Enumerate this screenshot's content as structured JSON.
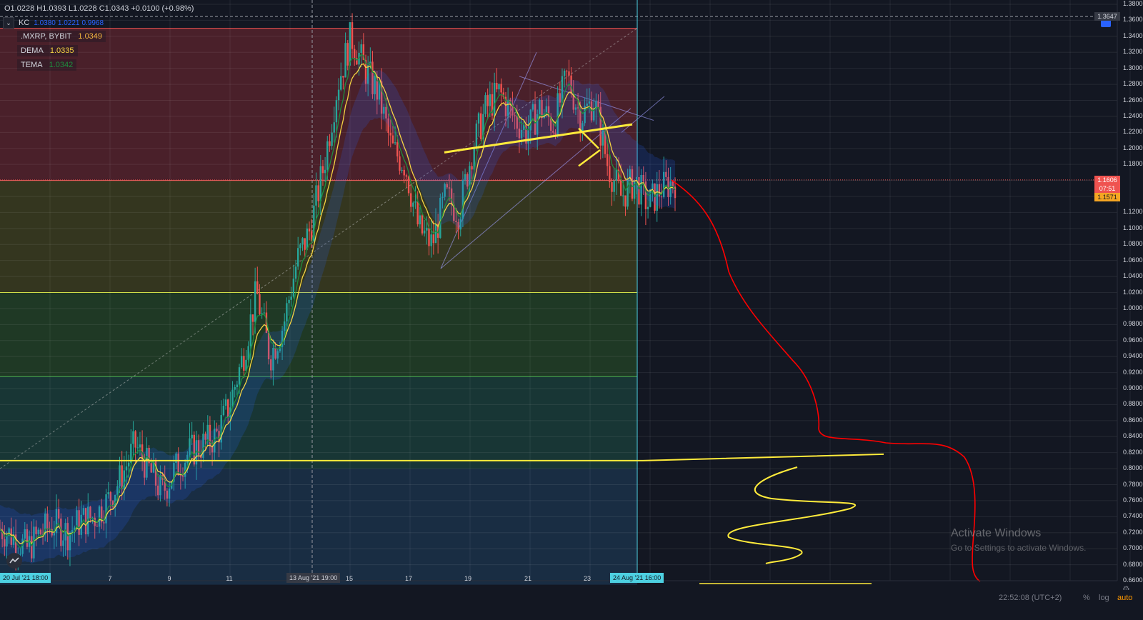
{
  "legend": {
    "ohlc": "O1.0228  H1.0393  L1.0228  C1.0343  +0.0100 (+0.98%)",
    "kc_label": "KC",
    "kc_values": [
      "1.0380",
      "1.0221",
      "0.9968"
    ],
    "symbol_name": ".MXRP, BYBIT",
    "symbol_value": "1.0349",
    "dema_name": "DEMA",
    "dema_value": "1.0335",
    "tema_name": "TEMA",
    "tema_value": "1.0342"
  },
  "price_axis": {
    "labels": [
      "1.3800",
      "1.3647",
      "1.3600",
      "1.3400",
      "1.3200",
      "1.3000",
      "1.2800",
      "1.2600",
      "1.2400",
      "1.2200",
      "1.2000",
      "1.1800",
      "1.1606",
      "07:51",
      "1.1571",
      "1.1200",
      "1.1000",
      "1.0800",
      "1.0600",
      "1.0400",
      "1.0200",
      "1.0000",
      "0.9800",
      "0.9600",
      "0.9400",
      "0.9200",
      "0.9000",
      "0.8800",
      "0.8600",
      "0.8400",
      "0.8200",
      "0.8000",
      "0.7800",
      "0.7600",
      "0.7400",
      "0.7200",
      "0.7000",
      "0.6800",
      "0.6600"
    ],
    "current_price": "1.1606",
    "countdown": "07:51",
    "secondary_price": "1.1571",
    "crosshair_price": "1.3647"
  },
  "time_axis": {
    "labels": [
      "7",
      "9",
      "11",
      "15",
      "17",
      "19",
      "21",
      "23"
    ],
    "start_label": "20 Jul '21   18:00",
    "crosshair_label": "13 Aug '21   19:00",
    "end_label": "24 Aug '21   16:00"
  },
  "bottom": {
    "clock": "22:52:08 (UTC+2)",
    "percent": "%",
    "log": "log",
    "auto": "auto"
  },
  "watermark": {
    "title": "Activate Windows",
    "subtitle": "Go to Settings to activate Windows."
  },
  "colors": {
    "up": "#26a69a",
    "down": "#ef5350",
    "dema": "#f5d442",
    "tema": "#1e8e3e",
    "kc": "#2962ff",
    "drawing_red": "#ff0000",
    "drawing_yellow": "#ffeb3b"
  },
  "chart_data": {
    "type": "candlestick",
    "price_range": [
      0.66,
      1.38
    ],
    "close_path": [
      [
        0,
        0.725
      ],
      [
        0.02,
        0.715
      ],
      [
        0.04,
        0.7
      ],
      [
        0.06,
        0.72
      ],
      [
        0.08,
        0.73
      ],
      [
        0.1,
        0.72
      ],
      [
        0.12,
        0.735
      ],
      [
        0.14,
        0.74
      ],
      [
        0.16,
        0.76
      ],
      [
        0.18,
        0.79
      ],
      [
        0.2,
        0.83
      ],
      [
        0.22,
        0.8
      ],
      [
        0.24,
        0.77
      ],
      [
        0.26,
        0.8
      ],
      [
        0.28,
        0.82
      ],
      [
        0.3,
        0.83
      ],
      [
        0.32,
        0.84
      ],
      [
        0.34,
        0.88
      ],
      [
        0.36,
        0.94
      ],
      [
        0.38,
        1.02
      ],
      [
        0.4,
        0.94
      ],
      [
        0.42,
        0.98
      ],
      [
        0.44,
        1.06
      ],
      [
        0.46,
        1.1
      ],
      [
        0.48,
        1.18
      ],
      [
        0.5,
        1.28
      ],
      [
        0.52,
        1.34
      ],
      [
        0.54,
        1.3
      ],
      [
        0.56,
        1.27
      ],
      [
        0.58,
        1.2
      ],
      [
        0.6,
        1.18
      ],
      [
        0.62,
        1.1
      ],
      [
        0.64,
        1.08
      ],
      [
        0.66,
        1.14
      ],
      [
        0.68,
        1.12
      ],
      [
        0.7,
        1.2
      ],
      [
        0.72,
        1.25
      ],
      [
        0.74,
        1.27
      ],
      [
        0.76,
        1.24
      ],
      [
        0.78,
        1.22
      ],
      [
        0.8,
        1.25
      ],
      [
        0.82,
        1.23
      ],
      [
        0.84,
        1.29
      ],
      [
        0.86,
        1.24
      ],
      [
        0.88,
        1.26
      ],
      [
        0.9,
        1.18
      ],
      [
        0.92,
        1.14
      ],
      [
        0.94,
        1.16
      ],
      [
        0.96,
        1.13
      ],
      [
        0.98,
        1.15
      ],
      [
        1.0,
        1.16
      ]
    ],
    "fib_levels": [
      1.35,
      1.16,
      1.02,
      0.915,
      0.66
    ]
  }
}
